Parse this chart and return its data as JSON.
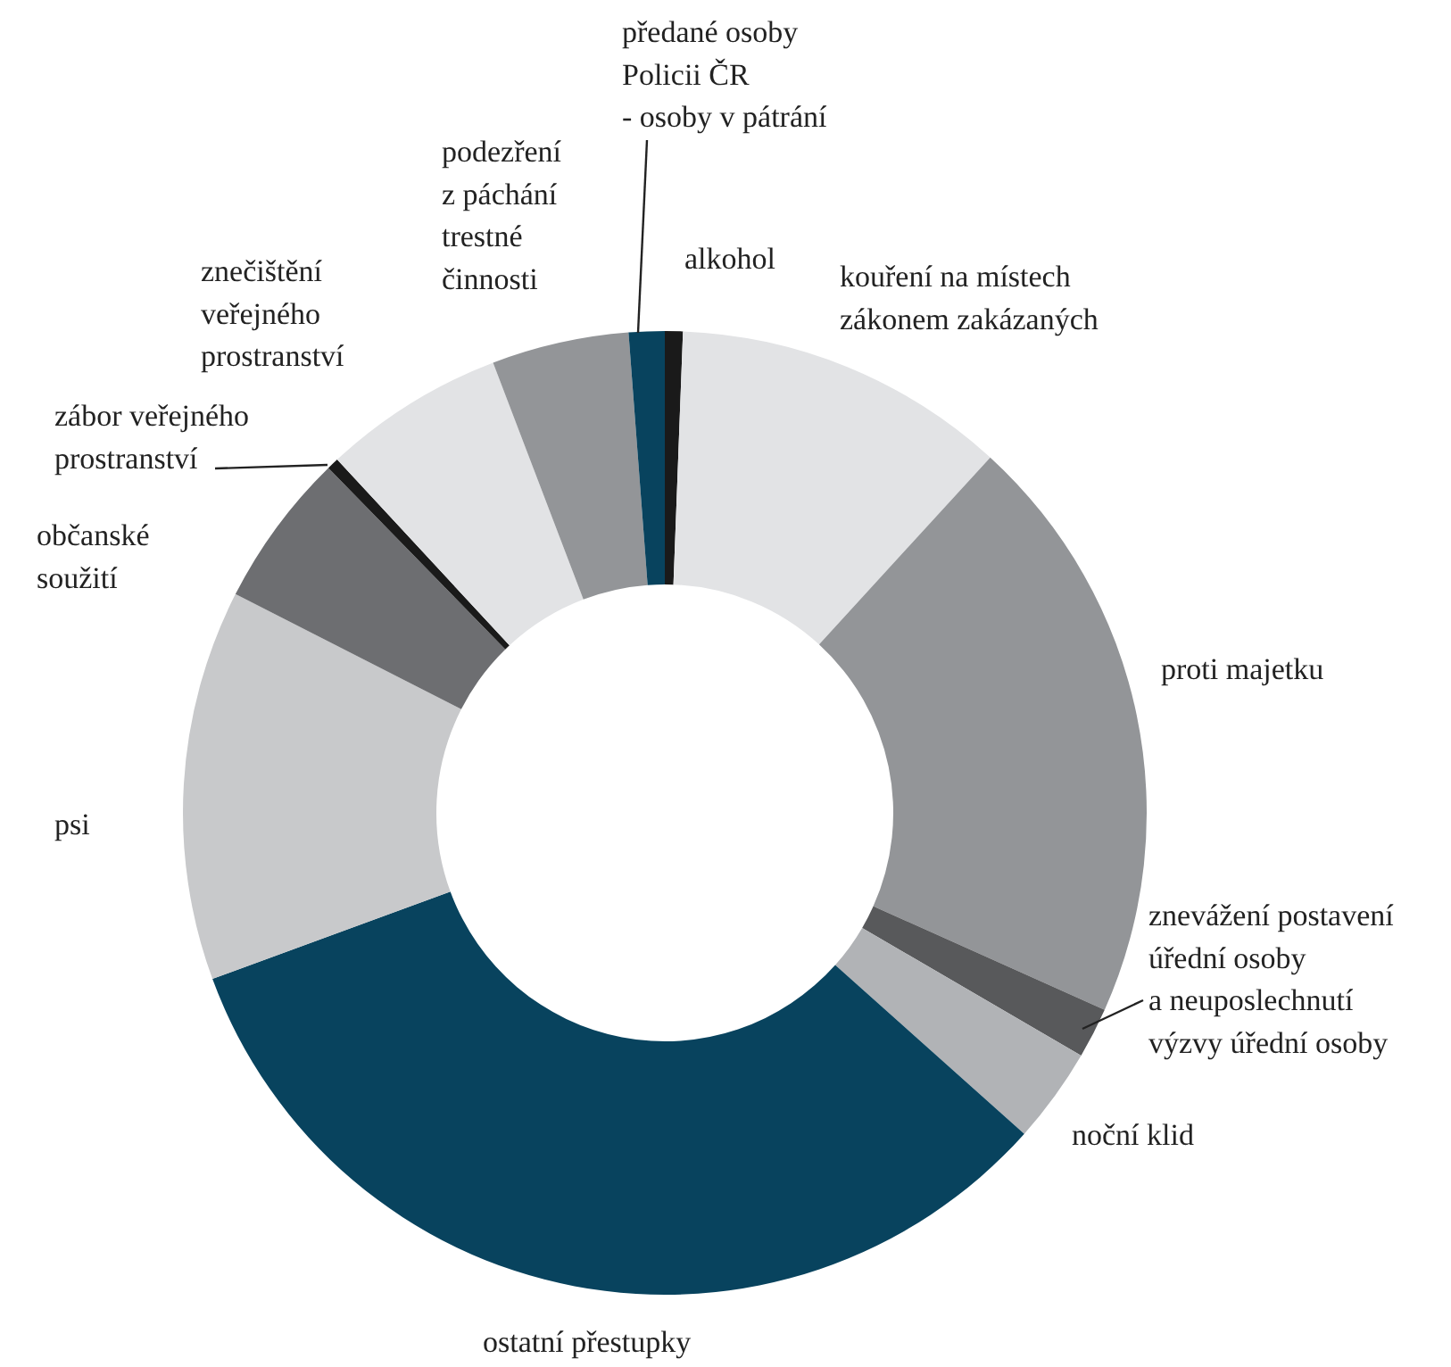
{
  "chart_data": {
    "type": "donut",
    "categories": [
      "alkohol",
      "kouření na místech\nzákonem zakázaných",
      "proti majetku",
      "znevážení postavení\núřední osoby\na neuposlechnutí\nvýzvy úřední osoby",
      "noční klid",
      "ostatní přestupky",
      "psi",
      "občanské\nsoužití",
      "zábor veřejného\nprostranství",
      "znečištění\nveřejného\nprostranství",
      "podezření\nz páchání\ntrestné\nčinnosti",
      "předané osoby\nPolicii ČR\n- osoby v pátrání"
    ],
    "values": [
      0.6,
      11.2,
      19.9,
      1.7,
      3.2,
      32.8,
      13.1,
      5.2,
      0.4,
      6.1,
      4.6,
      1.2
    ],
    "colors": [
      "#1a1a1a",
      "#e2e3e5",
      "#939598",
      "#58595b",
      "#b1b3b6",
      "#08435e",
      "#c8c9cb",
      "#6d6e71",
      "#1a1a1a",
      "#e2e3e5",
      "#939598",
      "#08435e"
    ]
  }
}
